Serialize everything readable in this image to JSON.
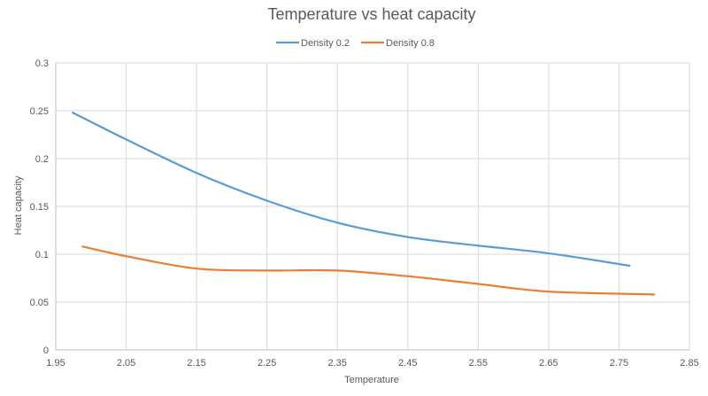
{
  "chart_data": {
    "type": "line",
    "title": "Temperature vs heat capacity",
    "xlabel": "Temperature",
    "ylabel": "Heat capacity",
    "xlim": [
      1.95,
      2.85
    ],
    "ylim": [
      0,
      0.3
    ],
    "xticks": [
      "1.95",
      "2.05",
      "2.15",
      "2.25",
      "2.35",
      "2.45",
      "2.55",
      "2.65",
      "2.75",
      "2.85"
    ],
    "yticks": [
      "0",
      "0.05",
      "0.1",
      "0.15",
      "0.2",
      "0.25",
      "0.3"
    ],
    "grid": true,
    "legend": "top",
    "smooth": true,
    "series": [
      {
        "name": "Density 0.2",
        "color": "#5b9bd5",
        "x": [
          1.974,
          2.05,
          2.15,
          2.25,
          2.35,
          2.45,
          2.55,
          2.65,
          2.765
        ],
        "y": [
          0.248,
          0.22,
          0.185,
          0.156,
          0.133,
          0.118,
          0.109,
          0.101,
          0.088
        ]
      },
      {
        "name": "Density 0.8",
        "color": "#ed7d31",
        "x": [
          1.988,
          2.05,
          2.15,
          2.25,
          2.35,
          2.45,
          2.55,
          2.65,
          2.8
        ],
        "y": [
          0.108,
          0.098,
          0.085,
          0.083,
          0.083,
          0.077,
          0.069,
          0.061,
          0.058
        ]
      }
    ]
  }
}
